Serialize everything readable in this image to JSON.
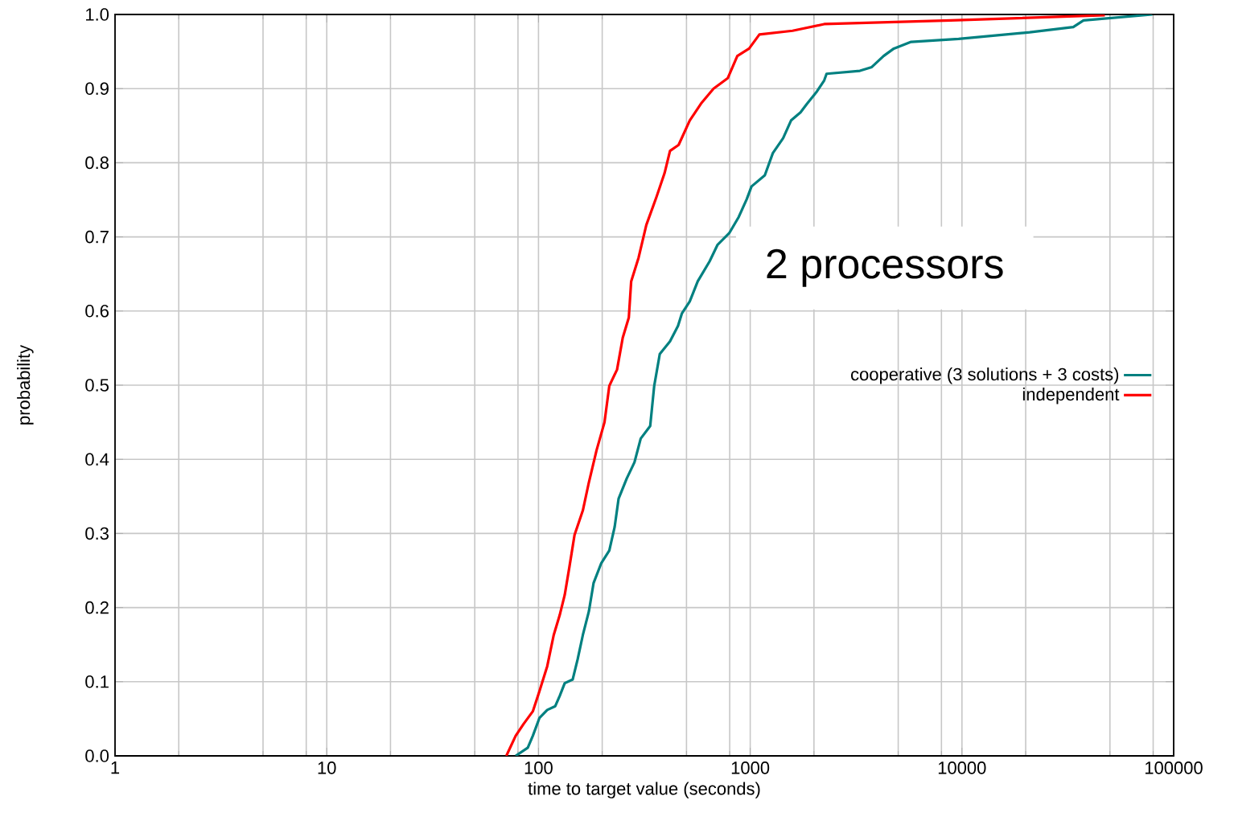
{
  "chart_data": {
    "type": "line",
    "xlabel": "time to target value (seconds)",
    "ylabel": "probability",
    "log": "x",
    "grid": true,
    "legend": "right",
    "marker": "none",
    "line_style": "solid",
    "xlim": [
      1,
      100000
    ],
    "xticks": [
      1,
      10,
      100,
      1000,
      10000,
      100000
    ],
    "ylim": [
      0,
      1
    ],
    "yticks": [
      {
        "value": 0,
        "label": "0.0"
      },
      0.1,
      0.2,
      0.3,
      0.4,
      0.5,
      0.6,
      0.7,
      0.8,
      0.9,
      {
        "value": 1,
        "label": "1.0"
      }
    ],
    "annotations": [
      "2 processors"
    ],
    "series": [
      {
        "name": "cooperative (3 solutions + 3 costs)",
        "color": "#008080",
        "x": [
          78,
          89,
          94,
          101,
          110,
          120,
          126,
          133,
          145,
          153,
          162,
          173,
          182,
          198,
          216,
          229,
          239,
          261,
          284,
          304,
          337,
          352,
          374,
          418,
          456,
          476,
          518,
          565,
          643,
          700,
          796,
          883,
          963,
          1014,
          1172,
          1279,
          1430,
          1559,
          1728,
          1849,
          2051,
          2235,
          2294,
          3296,
          3750,
          4266,
          4767,
          5754,
          9640,
          20900,
          33560,
          37500,
          79300
        ],
        "values": [
          0,
          0.011,
          0.027,
          0.051,
          0.062,
          0.067,
          0.081,
          0.098,
          0.103,
          0.13,
          0.163,
          0.195,
          0.233,
          0.26,
          0.277,
          0.309,
          0.347,
          0.374,
          0.396,
          0.428,
          0.445,
          0.499,
          0.542,
          0.559,
          0.58,
          0.597,
          0.613,
          0.64,
          0.667,
          0.689,
          0.705,
          0.727,
          0.751,
          0.768,
          0.783,
          0.813,
          0.833,
          0.857,
          0.868,
          0.879,
          0.895,
          0.911,
          0.92,
          0.924,
          0.929,
          0.944,
          0.954,
          0.963,
          0.967,
          0.976,
          0.983,
          0.992,
          1.0
        ]
      },
      {
        "name": "independent",
        "color": "#ff0000",
        "x": [
          70.5,
          78,
          85,
          94,
          101,
          110,
          118,
          126,
          133,
          140,
          148,
          162,
          173,
          188,
          205,
          216,
          235,
          250,
          267,
          274,
          297,
          323,
          361,
          394,
          418,
          459,
          518,
          590,
          671,
          783,
          869,
          988,
          1105,
          1585,
          2235,
          8850,
          47300
        ],
        "values": [
          0,
          0.027,
          0.043,
          0.06,
          0.087,
          0.121,
          0.163,
          0.19,
          0.217,
          0.255,
          0.298,
          0.331,
          0.369,
          0.412,
          0.45,
          0.499,
          0.521,
          0.564,
          0.591,
          0.64,
          0.672,
          0.716,
          0.754,
          0.786,
          0.816,
          0.824,
          0.857,
          0.881,
          0.9,
          0.914,
          0.944,
          0.954,
          0.973,
          0.978,
          0.987,
          0.992,
          0.999
        ]
      }
    ]
  }
}
